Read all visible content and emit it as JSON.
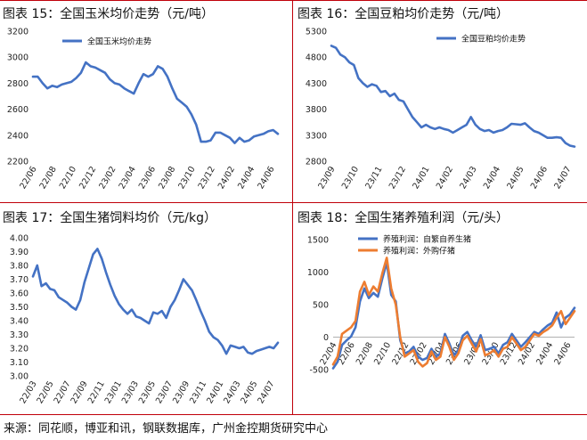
{
  "source_note": "来源：同花顺，博亚和讯，钢联数据库，广州金控期货研究中心",
  "colors": {
    "divider": "#c0000a",
    "blue": "#4472c4",
    "orange": "#ed7d31",
    "zero_line": "#b0b0b0"
  },
  "chart_data": [
    {
      "id": "corn",
      "type": "line",
      "title": "图表 15：全国玉米均价走势（元/吨）",
      "ylim": [
        2200,
        3200
      ],
      "yticks": [
        "3200",
        "3000",
        "2800",
        "2600",
        "2400",
        "2200"
      ],
      "ytick_values": [
        3200,
        3000,
        2800,
        2600,
        2400,
        2200
      ],
      "xticks": [
        "22/06",
        "22/08",
        "22/10",
        "22/12",
        "23/02",
        "23/04",
        "23/06",
        "23/08",
        "23/10",
        "23/12",
        "24/02",
        "24/04",
        "24/06"
      ],
      "x_range": [
        0,
        25.5
      ],
      "legend": [
        "全国玉米均价走势"
      ],
      "series": [
        {
          "name": "全国玉米均价走势",
          "color": "#4472c4",
          "x": [
            0,
            0.5,
            1,
            1.5,
            2,
            2.5,
            3,
            3.5,
            4,
            4.5,
            5,
            5.5,
            6,
            6.5,
            7,
            7.5,
            8,
            8.5,
            9,
            9.5,
            10,
            10.5,
            11,
            11.5,
            12,
            12.5,
            13,
            13.5,
            14,
            14.5,
            15,
            15.5,
            16,
            16.5,
            17,
            17.5,
            18,
            18.5,
            19,
            19.5,
            20,
            20.5,
            21,
            21.5,
            22,
            22.5,
            23,
            23.5,
            24,
            24.5,
            25,
            25.5
          ],
          "values": [
            2850,
            2850,
            2800,
            2760,
            2780,
            2770,
            2790,
            2800,
            2810,
            2840,
            2880,
            2960,
            2930,
            2920,
            2900,
            2880,
            2830,
            2800,
            2790,
            2760,
            2740,
            2720,
            2800,
            2870,
            2850,
            2870,
            2930,
            2910,
            2850,
            2760,
            2680,
            2650,
            2620,
            2560,
            2480,
            2350,
            2350,
            2360,
            2420,
            2420,
            2400,
            2380,
            2340,
            2380,
            2350,
            2360,
            2390,
            2400,
            2410,
            2430,
            2440,
            2410
          ]
        }
      ]
    },
    {
      "id": "soymeal",
      "type": "line",
      "title": "图表 16：全国豆粕均价走势（元/吨）",
      "ylim": [
        2800,
        5300
      ],
      "yticks": [
        "5300",
        "4800",
        "4300",
        "3800",
        "3300",
        "2800"
      ],
      "ytick_values": [
        5300,
        4800,
        4300,
        3800,
        3300,
        2800
      ],
      "xticks": [
        "23/09",
        "23/10",
        "23/11",
        "23/12",
        "24/01",
        "24/02",
        "24/03",
        "24/04",
        "24/05",
        "24/06",
        "24/07"
      ],
      "x_range": [
        0,
        10.8
      ],
      "legend": [
        "全国豆粕均价走势"
      ],
      "series": [
        {
          "name": "全国豆粕均价走势",
          "color": "#4472c4",
          "x": [
            0,
            0.2,
            0.4,
            0.6,
            0.8,
            1.0,
            1.2,
            1.4,
            1.6,
            1.8,
            2.0,
            2.2,
            2.4,
            2.6,
            2.8,
            3.0,
            3.2,
            3.4,
            3.6,
            3.8,
            4.0,
            4.2,
            4.4,
            4.6,
            4.8,
            5.0,
            5.2,
            5.4,
            5.6,
            5.8,
            6.0,
            6.2,
            6.4,
            6.6,
            6.8,
            7.0,
            7.2,
            7.4,
            7.6,
            7.8,
            8.0,
            8.2,
            8.4,
            8.6,
            8.8,
            9.0,
            9.2,
            9.4,
            9.6,
            9.8,
            10.0,
            10.2,
            10.4,
            10.6,
            10.8
          ],
          "values": [
            5020,
            4980,
            4850,
            4800,
            4700,
            4650,
            4400,
            4300,
            4230,
            4280,
            4250,
            4130,
            4150,
            4050,
            4100,
            3980,
            3950,
            3800,
            3650,
            3550,
            3450,
            3500,
            3450,
            3420,
            3450,
            3420,
            3400,
            3350,
            3400,
            3450,
            3500,
            3650,
            3500,
            3420,
            3380,
            3400,
            3350,
            3380,
            3400,
            3450,
            3520,
            3510,
            3500,
            3530,
            3450,
            3380,
            3350,
            3300,
            3250,
            3250,
            3260,
            3250,
            3150,
            3100,
            3080
          ]
        }
      ]
    },
    {
      "id": "hog_feed",
      "type": "line",
      "title": "图表 17：全国生猪饲料均价（元/kg）",
      "ylim": [
        3.0,
        4.0
      ],
      "yticks": [
        "4.00",
        "3.90",
        "3.80",
        "3.70",
        "3.60",
        "3.50",
        "3.40",
        "3.30",
        "3.20",
        "3.10",
        "3.00"
      ],
      "ytick_values": [
        4.0,
        3.9,
        3.8,
        3.7,
        3.6,
        3.5,
        3.4,
        3.3,
        3.2,
        3.1,
        3.0
      ],
      "xticks": [
        "22/03",
        "22/05",
        "22/07",
        "22/09",
        "22/11",
        "23/01",
        "23/03",
        "23/05",
        "23/07",
        "23/09",
        "23/11",
        "24/01",
        "24/03",
        "24/05",
        "24/07"
      ],
      "x_range": [
        0,
        28.5
      ],
      "legend": [],
      "series": [
        {
          "name": "全国生猪饲料均价",
          "color": "#4472c4",
          "x": [
            0,
            0.5,
            1,
            1.5,
            2,
            2.5,
            3,
            3.5,
            4,
            4.5,
            5,
            5.5,
            6,
            6.5,
            7,
            7.5,
            8,
            8.5,
            9,
            9.5,
            10,
            10.5,
            11,
            11.5,
            12,
            12.5,
            13,
            13.5,
            14,
            14.5,
            15,
            15.5,
            16,
            16.5,
            17,
            17.5,
            18,
            18.5,
            19,
            19.5,
            20,
            20.5,
            21,
            21.5,
            22,
            22.5,
            23,
            23.5,
            24,
            24.5,
            25,
            25.5,
            26,
            26.5,
            27,
            27.5,
            28,
            28.5
          ],
          "values": [
            3.72,
            3.8,
            3.65,
            3.67,
            3.63,
            3.62,
            3.57,
            3.55,
            3.53,
            3.5,
            3.48,
            3.55,
            3.68,
            3.78,
            3.88,
            3.92,
            3.85,
            3.75,
            3.66,
            3.58,
            3.52,
            3.48,
            3.45,
            3.48,
            3.43,
            3.42,
            3.4,
            3.38,
            3.46,
            3.45,
            3.47,
            3.42,
            3.5,
            3.55,
            3.62,
            3.7,
            3.66,
            3.62,
            3.55,
            3.47,
            3.4,
            3.32,
            3.28,
            3.26,
            3.22,
            3.16,
            3.22,
            3.21,
            3.2,
            3.21,
            3.17,
            3.16,
            3.18,
            3.19,
            3.2,
            3.21,
            3.2,
            3.24
          ]
        }
      ]
    },
    {
      "id": "hog_profit",
      "type": "line",
      "title": "图表 18：全国生猪养殖利润（元/头）",
      "ylim": [
        -500,
        1500
      ],
      "yticks": [
        "1500",
        "1000",
        "500",
        "0",
        "-500"
      ],
      "ytick_values": [
        1500,
        1000,
        500,
        0,
        -500
      ],
      "xticks": [
        "22/04",
        "22/06",
        "22/08",
        "22/10",
        "22/12",
        "23/02",
        "23/04",
        "23/06",
        "23/08",
        "23/10",
        "23/12",
        "24/02",
        "24/04",
        "24/06"
      ],
      "x_range": [
        0,
        27
      ],
      "legend": [
        "养殖利润：自繁自养生猪",
        "养殖利润：外购仔猪"
      ],
      "series": [
        {
          "name": "养殖利润：自繁自养生猪",
          "color": "#4472c4",
          "x": [
            0,
            0.5,
            1,
            1.5,
            2,
            2.5,
            3,
            3.5,
            4,
            4.5,
            5,
            5.5,
            6,
            6.5,
            7,
            7.5,
            8,
            8.5,
            9,
            9.5,
            10,
            10.5,
            11,
            11.5,
            12,
            12.5,
            13,
            13.5,
            14,
            14.5,
            15,
            15.5,
            16,
            16.5,
            17,
            17.5,
            18,
            18.5,
            19,
            19.5,
            20,
            20.5,
            21,
            21.5,
            22,
            22.5,
            23,
            23.5,
            24,
            24.5,
            25,
            25.5,
            26,
            26.5,
            27
          ],
          "values": [
            -480,
            -380,
            -120,
            -50,
            10,
            150,
            550,
            750,
            600,
            680,
            620,
            900,
            1150,
            650,
            550,
            -50,
            -250,
            -220,
            -150,
            -300,
            -350,
            -320,
            -180,
            -300,
            -250,
            50,
            -100,
            -280,
            -200,
            20,
            80,
            -50,
            -150,
            30,
            -200,
            -180,
            -150,
            -250,
            -120,
            -80,
            50,
            -50,
            -150,
            -80,
            0,
            80,
            50,
            120,
            180,
            220,
            380,
            150,
            300,
            350,
            450
          ]
        },
        {
          "name": "养殖利润：外购仔猪",
          "color": "#ed7d31",
          "x": [
            0,
            0.5,
            1,
            1.5,
            2,
            2.5,
            3,
            3.5,
            4,
            4.5,
            5,
            5.5,
            6,
            6.5,
            7,
            7.5,
            8,
            8.5,
            9,
            9.5,
            10,
            10.5,
            11,
            11.5,
            12,
            12.5,
            13,
            13.5,
            14,
            14.5,
            15,
            15.5,
            16,
            16.5,
            17,
            17.5,
            18,
            18.5,
            19,
            19.5,
            20,
            20.5,
            21,
            21.5,
            22,
            22.5,
            23,
            23.5,
            24,
            24.5,
            25,
            25.5,
            26,
            26.5,
            27
          ],
          "values": [
            -420,
            -300,
            50,
            100,
            150,
            250,
            700,
            850,
            650,
            780,
            700,
            980,
            1220,
            750,
            500,
            0,
            -300,
            -250,
            -200,
            -380,
            -450,
            -400,
            -220,
            -350,
            -300,
            0,
            -150,
            -350,
            -250,
            -50,
            20,
            -100,
            -220,
            -30,
            -280,
            -250,
            -200,
            -300,
            -180,
            -150,
            0,
            -100,
            -200,
            -150,
            -50,
            50,
            20,
            80,
            120,
            180,
            300,
            400,
            200,
            300,
            400
          ]
        }
      ]
    }
  ]
}
